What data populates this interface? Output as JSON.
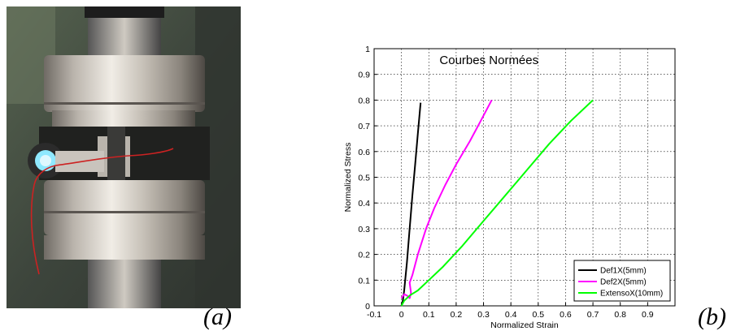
{
  "figure": {
    "label_a": "(a)",
    "label_b": "(b)"
  },
  "photo": {
    "subject": "tensile-test-grips-with-extensometer",
    "colors": {
      "steel": "#c9c4bd",
      "dark": "#2a2a2a",
      "background": "#3b4a3e",
      "wire": "#cc2222",
      "led": "#8fe8ff"
    }
  },
  "chart_data": {
    "type": "line",
    "title": "Courbes Normées",
    "xlabel": "Normalized Strain",
    "ylabel": "Normalized Stress",
    "xlim": [
      -0.1,
      1.0
    ],
    "ylim": [
      0,
      1
    ],
    "xticks": [
      "-0.1",
      "0",
      "0.1",
      "0.2",
      "0.3",
      "0.4",
      "0.5",
      "0.6",
      "0.7",
      "0.8",
      "0.9"
    ],
    "yticks": [
      "0",
      "0.1",
      "0.2",
      "0.3",
      "0.4",
      "0.5",
      "0.6",
      "0.7",
      "0.8",
      "0.9",
      "1"
    ],
    "grid": true,
    "legend_position": "bottom-right",
    "series": [
      {
        "name": "Def1X(5mm)",
        "color": "#000000",
        "x": [
          0.0,
          0.005,
          0.01,
          0.02,
          0.03,
          0.04,
          0.05,
          0.06,
          0.07
        ],
        "y": [
          0.0,
          0.02,
          0.06,
          0.17,
          0.3,
          0.43,
          0.55,
          0.67,
          0.79
        ]
      },
      {
        "name": "Def2X(5mm)",
        "color": "#ff00ff",
        "x": [
          0.0,
          0.01,
          0.02,
          0.03,
          0.035,
          0.03,
          0.04,
          0.06,
          0.09,
          0.12,
          0.16,
          0.2,
          0.25,
          0.29,
          0.33
        ],
        "y": [
          0.03,
          0.045,
          0.04,
          0.03,
          0.05,
          0.09,
          0.12,
          0.2,
          0.3,
          0.38,
          0.47,
          0.55,
          0.64,
          0.72,
          0.8
        ]
      },
      {
        "name": "ExtensoX(10mm)",
        "color": "#00ff00",
        "x": [
          0.0,
          0.01,
          0.03,
          0.06,
          0.1,
          0.15,
          0.22,
          0.3,
          0.38,
          0.46,
          0.54,
          0.62,
          0.7
        ],
        "y": [
          0.0,
          0.02,
          0.04,
          0.06,
          0.1,
          0.15,
          0.23,
          0.33,
          0.43,
          0.53,
          0.63,
          0.72,
          0.8
        ]
      }
    ]
  }
}
